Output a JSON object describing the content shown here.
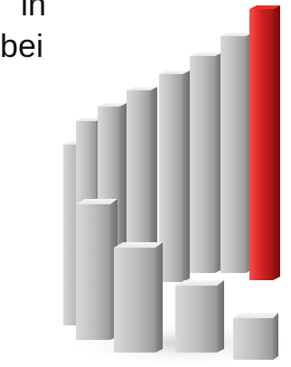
{
  "caption": {
    "line_1": "in",
    "line_2": "bei"
  },
  "illustration": {
    "icon": "ascending-3d-bar-chart-icon",
    "highlight_color": "#d41e1e",
    "base_color": "#c8c8c8"
  }
}
